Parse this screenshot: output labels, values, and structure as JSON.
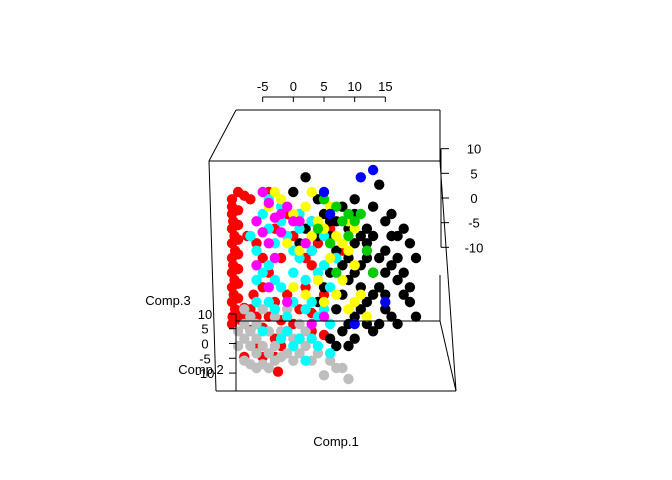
{
  "chart_data": {
    "type": "scatter",
    "title": "",
    "xlabel": "Comp.1",
    "ylabel": "Comp.2",
    "zlabel": "Comp.3",
    "xticks": [
      "-5",
      "0",
      "5",
      "10",
      "15"
    ],
    "xtick_values": [
      -5,
      0,
      5,
      10,
      15
    ],
    "right_ticks": [
      "10",
      "5",
      "0",
      "-5",
      "-10"
    ],
    "right_tick_values": [
      10,
      5,
      0,
      -5,
      -10
    ],
    "left_ticks": [
      "10",
      "5",
      "0",
      "-5",
      "-10"
    ],
    "left_tick_values": [
      10,
      5,
      0,
      -5,
      -10
    ],
    "xlim": [
      -10,
      20
    ],
    "right_range": [
      -15,
      15
    ],
    "left_range": [
      -12,
      12
    ],
    "colors": {
      "red": "#ff0000",
      "black": "#000000",
      "gray": "#bebebe",
      "cyan": "#00ffff",
      "yellow": "#ffff00",
      "magenta": "#ff00ff",
      "green": "#00cd00",
      "blue": "#0000ff"
    },
    "series": [
      {
        "color": "red",
        "points": [
          [
            -10,
            8
          ],
          [
            -10,
            7
          ],
          [
            -10,
            6
          ],
          [
            -9.8,
            5
          ],
          [
            -10,
            4
          ],
          [
            -9.6,
            3
          ],
          [
            -10,
            2
          ],
          [
            -9.5,
            1
          ],
          [
            -10,
            0
          ],
          [
            -9.8,
            -1
          ],
          [
            -10,
            -2
          ],
          [
            -9.6,
            -3
          ],
          [
            -10,
            -4
          ],
          [
            -9.7,
            -5
          ],
          [
            -10,
            -6
          ],
          [
            -9.5,
            -7
          ],
          [
            -9.9,
            -8
          ],
          [
            -10,
            -9
          ],
          [
            -9,
            9
          ],
          [
            -9,
            6.5
          ],
          [
            -9,
            4.5
          ],
          [
            -9,
            2.5
          ],
          [
            -9,
            0.5
          ],
          [
            -9,
            -1.5
          ],
          [
            -9,
            -3.5
          ],
          [
            -9,
            -5.5
          ],
          [
            -8.5,
            -7.5
          ],
          [
            -8.5,
            -8.5
          ],
          [
            -8,
            8.5
          ],
          [
            -8,
            -6.8
          ],
          [
            -7,
            -7
          ],
          [
            -6,
            -8
          ],
          [
            -7.5,
            3
          ],
          [
            -6.5,
            -5
          ],
          [
            -8,
            -13.5
          ],
          [
            -5,
            -13.5
          ],
          [
            -3,
            -13.5
          ],
          [
            -5.5,
            -12
          ],
          [
            -3,
            -11
          ],
          [
            -2,
            -12
          ],
          [
            -1,
            -10
          ],
          [
            1,
            -11
          ],
          [
            3,
            -10
          ],
          [
            5,
            -10.5
          ],
          [
            -2.5,
            -15.5
          ],
          [
            -5,
            -9.5
          ],
          [
            -4,
            -8
          ],
          [
            -2,
            -8.5
          ],
          [
            0,
            -9
          ],
          [
            -7,
            -9.8
          ],
          [
            1,
            -7
          ],
          [
            3,
            -7.5
          ],
          [
            -3,
            -6
          ],
          [
            -1,
            -5
          ],
          [
            -5,
            -4
          ],
          [
            5,
            -5
          ],
          [
            2,
            -4
          ],
          [
            -2,
            0
          ],
          [
            -3,
            4
          ],
          [
            0,
            3
          ],
          [
            4,
            2
          ],
          [
            2,
            0
          ],
          [
            -5,
            0
          ],
          [
            3,
            -1
          ],
          [
            -6,
            2
          ],
          [
            -1,
            6
          ],
          [
            -7,
            8
          ],
          [
            -4,
            9
          ],
          [
            6,
            4
          ],
          [
            8,
            1
          ],
          [
            -4,
            -2
          ]
        ]
      },
      {
        "color": "black",
        "points": [
          [
            2,
            11
          ],
          [
            14,
            10
          ],
          [
            3,
            5
          ],
          [
            6,
            3
          ],
          [
            9,
            4
          ],
          [
            10,
            2
          ],
          [
            12,
            0
          ],
          [
            13,
            -2
          ],
          [
            14,
            0
          ],
          [
            15,
            1
          ],
          [
            16,
            -1
          ],
          [
            17,
            -3
          ],
          [
            18,
            -5
          ],
          [
            19,
            -6
          ],
          [
            20,
            -8
          ],
          [
            19,
            -4
          ],
          [
            20,
            0
          ],
          [
            19,
            2
          ],
          [
            18,
            4
          ],
          [
            17,
            3
          ],
          [
            16,
            3
          ],
          [
            15,
            5
          ],
          [
            14,
            -4
          ],
          [
            13,
            -5
          ],
          [
            12,
            -6
          ],
          [
            11,
            -7
          ],
          [
            10,
            -8
          ],
          [
            9,
            -9
          ],
          [
            8,
            -10
          ],
          [
            11,
            -4
          ],
          [
            8,
            -5
          ],
          [
            7,
            -7
          ],
          [
            12,
            -9
          ],
          [
            15,
            -7
          ],
          [
            16,
            -8
          ],
          [
            17,
            -9
          ],
          [
            14,
            -9
          ],
          [
            13,
            -10
          ],
          [
            10,
            -11
          ],
          [
            9,
            -12
          ],
          [
            7,
            -12
          ],
          [
            6,
            -11
          ],
          [
            12,
            4
          ],
          [
            10,
            6
          ],
          [
            8,
            7
          ],
          [
            5,
            6
          ],
          [
            4,
            8
          ],
          [
            11,
            3
          ],
          [
            9,
            -3
          ],
          [
            7,
            1
          ],
          [
            6,
            -2
          ],
          [
            5,
            -4
          ],
          [
            3,
            1
          ],
          [
            2,
            4
          ],
          [
            4,
            -6
          ],
          [
            8,
            -1
          ],
          [
            10,
            -2
          ],
          [
            15,
            -2
          ],
          [
            17,
            0
          ],
          [
            13,
            3
          ],
          [
            16,
            6
          ],
          [
            18,
            -2
          ],
          [
            12,
            2
          ],
          [
            11,
            -1
          ],
          [
            9,
            0
          ],
          [
            6,
            5
          ],
          [
            4,
            3
          ],
          [
            7,
            5
          ],
          [
            13,
            7
          ],
          [
            10,
            8
          ],
          [
            0,
            9
          ],
          [
            1,
            2
          ],
          [
            15,
            -5
          ]
        ]
      },
      {
        "color": "gray",
        "points": [
          [
            -8,
            -11
          ],
          [
            -7,
            -12
          ],
          [
            -6,
            -13
          ],
          [
            -9,
            -10
          ],
          [
            -8,
            -9
          ],
          [
            -7,
            -10
          ],
          [
            -6,
            -11
          ],
          [
            -5,
            -12
          ],
          [
            -4,
            -13
          ],
          [
            -9,
            -12
          ],
          [
            -8,
            -14
          ],
          [
            -7,
            -14.5
          ],
          [
            -6,
            -15
          ],
          [
            -5,
            -14.5
          ],
          [
            -4,
            -15
          ],
          [
            -3,
            -14
          ],
          [
            -2,
            -13.5
          ],
          [
            -1,
            -13
          ],
          [
            -3,
            -12
          ],
          [
            0,
            -14
          ],
          [
            1,
            -13
          ],
          [
            2,
            -12
          ],
          [
            3,
            -14
          ],
          [
            4,
            -13
          ],
          [
            6,
            -14
          ],
          [
            8,
            -15
          ],
          [
            7,
            -15
          ],
          [
            9,
            -16.5
          ],
          [
            5,
            -16
          ],
          [
            -6,
            -9
          ],
          [
            -7,
            -8
          ],
          [
            -5,
            -7
          ],
          [
            -8,
            -7
          ],
          [
            -4,
            -10
          ],
          [
            -2,
            -10
          ],
          [
            0,
            -11
          ],
          [
            -3,
            -8
          ],
          [
            1,
            -9
          ],
          [
            -1,
            -7
          ],
          [
            2,
            -10
          ]
        ]
      },
      {
        "color": "cyan",
        "points": [
          [
            -5,
            6
          ],
          [
            -4,
            4
          ],
          [
            -6,
            1
          ],
          [
            -3,
            2
          ],
          [
            -2,
            5
          ],
          [
            -1,
            3
          ],
          [
            0,
            1
          ],
          [
            1,
            4
          ],
          [
            -4,
            -1
          ],
          [
            -3,
            -3
          ],
          [
            -5,
            -2
          ],
          [
            -2,
            -4
          ],
          [
            0,
            -2
          ],
          [
            1,
            0
          ],
          [
            2,
            -3
          ],
          [
            3,
            1
          ],
          [
            4,
            -2
          ],
          [
            5,
            -1
          ],
          [
            -6,
            -6
          ],
          [
            -4,
            -6
          ],
          [
            -3,
            -7
          ],
          [
            -1,
            -8
          ],
          [
            0,
            -6
          ],
          [
            2,
            -7
          ],
          [
            3,
            -6
          ],
          [
            4,
            -8
          ],
          [
            5,
            -7
          ],
          [
            6,
            -9
          ],
          [
            -2,
            -11
          ],
          [
            0,
            -12
          ],
          [
            2,
            -14
          ],
          [
            4,
            -12
          ],
          [
            -5,
            -10
          ],
          [
            3,
            -11
          ],
          [
            -1,
            -10
          ],
          [
            1,
            -11
          ],
          [
            6,
            -13
          ],
          [
            -7,
            3
          ],
          [
            -6,
            -3
          ],
          [
            7,
            0
          ],
          [
            5,
            3
          ],
          [
            -2,
            7
          ],
          [
            3,
            5
          ],
          [
            -4,
            8
          ],
          [
            1,
            6
          ],
          [
            6,
            -4
          ]
        ]
      },
      {
        "color": "yellow",
        "points": [
          [
            -4,
            7
          ],
          [
            -2,
            8
          ],
          [
            0,
            6
          ],
          [
            2,
            7
          ],
          [
            4,
            5
          ],
          [
            5,
            4
          ],
          [
            7,
            3
          ],
          [
            8,
            2
          ],
          [
            9,
            1
          ],
          [
            10,
            -1
          ],
          [
            6,
            0
          ],
          [
            3,
            3
          ],
          [
            1,
            1
          ],
          [
            -1,
            2
          ],
          [
            4,
            -3
          ],
          [
            8,
            -3
          ],
          [
            10,
            -6
          ],
          [
            9,
            -7
          ],
          [
            7,
            -5
          ],
          [
            5,
            -6
          ],
          [
            11,
            -5
          ],
          [
            12,
            -8
          ],
          [
            2,
            -5
          ],
          [
            0,
            -4
          ],
          [
            9,
            5
          ],
          [
            6,
            7
          ],
          [
            3,
            9
          ],
          [
            10,
            4
          ],
          [
            -3,
            9
          ]
        ]
      },
      {
        "color": "magenta",
        "points": [
          [
            -5,
            9
          ],
          [
            -4,
            7.5
          ],
          [
            -2,
            6
          ],
          [
            -6,
            5
          ],
          [
            -3,
            5.5
          ],
          [
            -1,
            7
          ],
          [
            0,
            5
          ],
          [
            -5,
            3.5
          ],
          [
            -4,
            2
          ],
          [
            -2,
            3.5
          ],
          [
            1,
            5
          ],
          [
            -3,
            0
          ],
          [
            2,
            2
          ],
          [
            -6,
            -1
          ],
          [
            -4,
            -4
          ],
          [
            5,
            -8
          ],
          [
            3,
            -9
          ],
          [
            -1,
            -6
          ]
        ]
      },
      {
        "color": "green",
        "points": [
          [
            5,
            8
          ],
          [
            7,
            7
          ],
          [
            9,
            6
          ],
          [
            10,
            5
          ],
          [
            11,
            6
          ],
          [
            8,
            5
          ],
          [
            12,
            1
          ],
          [
            6,
            2
          ],
          [
            4,
            4
          ],
          [
            9,
            3
          ],
          [
            13,
            -2
          ],
          [
            7,
            -2
          ]
        ]
      },
      {
        "color": "blue",
        "points": [
          [
            11,
            11
          ],
          [
            13,
            12
          ],
          [
            6,
            6
          ],
          [
            15,
            -6
          ],
          [
            10,
            -9
          ],
          [
            5,
            9
          ]
        ]
      }
    ]
  }
}
